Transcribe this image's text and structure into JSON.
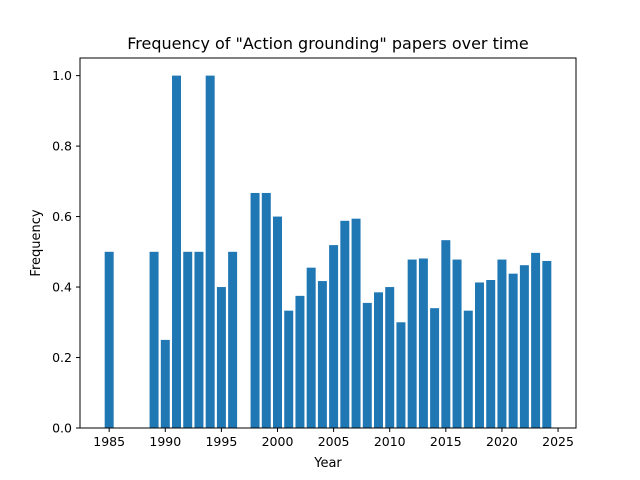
{
  "chart_data": {
    "type": "bar",
    "title": "Frequency of \"Action grounding\" papers over time",
    "xlabel": "Year",
    "ylabel": "Frequency",
    "xlim": [
      1982.4,
      2026.6
    ],
    "ylim": [
      0,
      1.05
    ],
    "xticks": [
      1985,
      1990,
      1995,
      2000,
      2005,
      2010,
      2015,
      2020,
      2025
    ],
    "yticks": [
      "0.0",
      "0.2",
      "0.4",
      "0.6",
      "0.8",
      "1.0"
    ],
    "bar_color": "#1f77b4",
    "grid": false,
    "x": [
      1985,
      1989,
      1990,
      1991,
      1992,
      1993,
      1994,
      1995,
      1996,
      1998,
      1999,
      2000,
      2001,
      2002,
      2003,
      2004,
      2005,
      2006,
      2007,
      2008,
      2009,
      2010,
      2011,
      2012,
      2013,
      2014,
      2015,
      2016,
      2017,
      2018,
      2019,
      2020,
      2021,
      2022,
      2023,
      2024
    ],
    "values": [
      0.5,
      0.5,
      0.25,
      1.0,
      0.5,
      0.5,
      1.0,
      0.4,
      0.5,
      0.667,
      0.667,
      0.6,
      0.333,
      0.375,
      0.455,
      0.417,
      0.519,
      0.588,
      0.594,
      0.355,
      0.385,
      0.4,
      0.3,
      0.478,
      0.481,
      0.34,
      0.533,
      0.478,
      0.333,
      0.413,
      0.42,
      0.478,
      0.438,
      0.462,
      0.497,
      0.474
    ]
  }
}
